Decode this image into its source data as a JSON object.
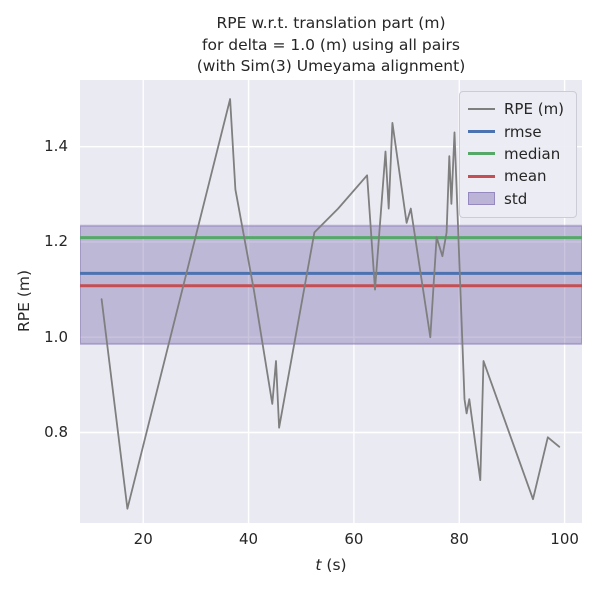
{
  "title_lines": [
    "RPE w.r.t. translation part (m)",
    "for delta = 1.0 (m) using all pairs",
    "(with Sim(3) Umeyama alignment)"
  ],
  "axes": {
    "ylabel": "RPE (m)",
    "xlabel_italic": "t",
    "xlabel_rest": " (s)"
  },
  "colors": {
    "figure_bg": "#ffffff",
    "axes_bg": "#eaeaf2",
    "grid": "#ffffff",
    "text": "#262626",
    "rpe_line": "#7f7f7f",
    "rmse": "#4c72b0",
    "median": "#55a868",
    "mean": "#c44e52",
    "std_fill": "#8172b2"
  },
  "chart_data": {
    "type": "line",
    "title": "RPE w.r.t. translation part (m) for delta = 1.0 (m) using all pairs (with Sim(3) Umeyama alignment)",
    "xlabel": "t (s)",
    "ylabel": "RPE (m)",
    "xlim": [
      8.0,
      103.3
    ],
    "ylim": [
      0.61,
      1.54
    ],
    "xticks": [
      20,
      40,
      60,
      80,
      100
    ],
    "yticks": [
      0.8,
      1.0,
      1.2,
      1.4
    ],
    "grid": true,
    "legend_position": "upper right",
    "series": [
      {
        "name": "RPE (m)",
        "color": "#7f7f7f",
        "linewidth": 1.8,
        "x": [
          12.1,
          17,
          36.5,
          37.5,
          41,
          44.5,
          45.2,
          45.8,
          52.5,
          57,
          62.5,
          64,
          66,
          66.6,
          67.3,
          70,
          70.8,
          74.5,
          75.7,
          76.8,
          77.6,
          78.1,
          78.5,
          79.1,
          81,
          81.4,
          81.9,
          84,
          84.6,
          94,
          96.8,
          99
        ],
        "y": [
          1.08,
          0.64,
          1.5,
          1.31,
          1.1,
          0.86,
          0.95,
          0.81,
          1.22,
          1.27,
          1.34,
          1.1,
          1.39,
          1.27,
          1.45,
          1.24,
          1.27,
          1.0,
          1.21,
          1.17,
          1.22,
          1.38,
          1.28,
          1.43,
          0.87,
          0.84,
          0.87,
          0.7,
          0.95,
          0.66,
          0.79,
          0.77
        ]
      }
    ],
    "hlines": [
      {
        "name": "rmse",
        "value": 1.134,
        "color": "#4c72b0",
        "linewidth": 3
      },
      {
        "name": "median",
        "value": 1.209,
        "color": "#55a868",
        "linewidth": 3
      },
      {
        "name": "mean",
        "value": 1.108,
        "color": "#c44e52",
        "linewidth": 3
      }
    ],
    "band": {
      "name": "std",
      "low": 0.986,
      "high": 1.234,
      "color": "#8172b2",
      "opacity": 0.42
    },
    "legend": {
      "position": "upper right",
      "items": [
        {
          "label": "RPE (m)",
          "swatch": "line",
          "color": "#7f7f7f",
          "lw": 2
        },
        {
          "label": "rmse",
          "swatch": "line",
          "color": "#4c72b0",
          "lw": 3
        },
        {
          "label": "median",
          "swatch": "line",
          "color": "#55a868",
          "lw": 3
        },
        {
          "label": "mean",
          "swatch": "line",
          "color": "#c44e52",
          "lw": 3
        },
        {
          "label": "std",
          "swatch": "patch",
          "color": "#8172b2",
          "lw": 0
        }
      ]
    }
  }
}
